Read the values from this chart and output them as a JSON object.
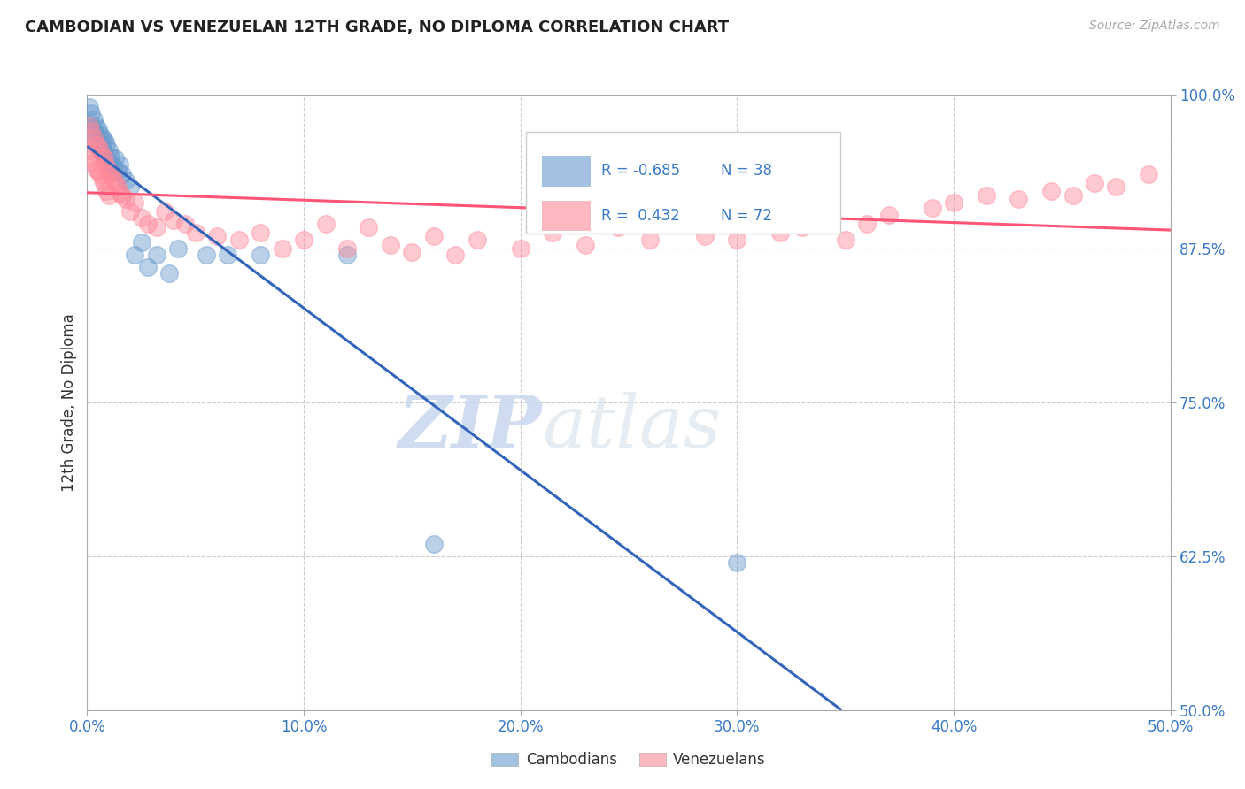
{
  "title": "CAMBODIAN VS VENEZUELAN 12TH GRADE, NO DIPLOMA CORRELATION CHART",
  "source": "Source: ZipAtlas.com",
  "ylabel": "12th Grade, No Diploma",
  "legend_label_cambodian": "Cambodians",
  "legend_label_venezuelan": "Venezuelans",
  "r_cambodian": -0.685,
  "n_cambodian": 38,
  "r_venezuelan": 0.432,
  "n_venezuelan": 72,
  "xlim": [
    0.0,
    0.5
  ],
  "ylim": [
    0.5,
    1.0
  ],
  "xticks": [
    0.0,
    0.1,
    0.2,
    0.3,
    0.4,
    0.5
  ],
  "yticks": [
    0.5,
    0.625,
    0.75,
    0.875,
    1.0
  ],
  "xticklabels": [
    "0.0%",
    "10.0%",
    "20.0%",
    "30.0%",
    "40.0%",
    "50.0%"
  ],
  "yticklabels": [
    "50.0%",
    "62.5%",
    "75.0%",
    "87.5%",
    "100.0%"
  ],
  "color_cambodian": "#6699CC",
  "color_venezuelan": "#FF8899",
  "trendline_color_cambodian": "#3366BB",
  "trendline_color_venezuelan": "#FF5577",
  "background_color": "#FFFFFF",
  "watermark_zip": "ZIP",
  "watermark_atlas": "atlas",
  "cam_x": [
    0.001,
    0.002,
    0.002,
    0.003,
    0.003,
    0.004,
    0.004,
    0.005,
    0.005,
    0.006,
    0.006,
    0.007,
    0.007,
    0.008,
    0.008,
    0.009,
    0.01,
    0.01,
    0.011,
    0.012,
    0.013,
    0.014,
    0.015,
    0.016,
    0.018,
    0.02,
    0.022,
    0.025,
    0.028,
    0.032,
    0.038,
    0.042,
    0.055,
    0.065,
    0.08,
    0.12,
    0.16,
    0.3
  ],
  "cam_y": [
    0.99,
    0.985,
    0.975,
    0.98,
    0.97,
    0.975,
    0.965,
    0.972,
    0.96,
    0.968,
    0.955,
    0.965,
    0.958,
    0.963,
    0.952,
    0.96,
    0.955,
    0.945,
    0.95,
    0.942,
    0.948,
    0.938,
    0.943,
    0.935,
    0.93,
    0.925,
    0.87,
    0.88,
    0.86,
    0.87,
    0.855,
    0.875,
    0.87,
    0.87,
    0.87,
    0.87,
    0.635,
    0.62
  ],
  "ven_x": [
    0.001,
    0.001,
    0.002,
    0.002,
    0.003,
    0.003,
    0.004,
    0.004,
    0.005,
    0.005,
    0.006,
    0.006,
    0.007,
    0.007,
    0.008,
    0.008,
    0.009,
    0.009,
    0.01,
    0.01,
    0.011,
    0.012,
    0.013,
    0.014,
    0.015,
    0.016,
    0.018,
    0.02,
    0.022,
    0.025,
    0.028,
    0.032,
    0.036,
    0.04,
    0.045,
    0.05,
    0.06,
    0.07,
    0.08,
    0.09,
    0.1,
    0.11,
    0.12,
    0.13,
    0.14,
    0.15,
    0.16,
    0.17,
    0.18,
    0.2,
    0.215,
    0.23,
    0.245,
    0.26,
    0.27,
    0.285,
    0.3,
    0.31,
    0.32,
    0.33,
    0.35,
    0.36,
    0.37,
    0.39,
    0.4,
    0.415,
    0.43,
    0.445,
    0.455,
    0.465,
    0.475,
    0.49
  ],
  "ven_y": [
    0.975,
    0.955,
    0.97,
    0.95,
    0.965,
    0.945,
    0.96,
    0.94,
    0.958,
    0.938,
    0.955,
    0.935,
    0.95,
    0.93,
    0.948,
    0.928,
    0.942,
    0.922,
    0.938,
    0.918,
    0.935,
    0.932,
    0.928,
    0.925,
    0.92,
    0.918,
    0.915,
    0.905,
    0.912,
    0.9,
    0.895,
    0.892,
    0.905,
    0.898,
    0.895,
    0.888,
    0.885,
    0.882,
    0.888,
    0.875,
    0.882,
    0.895,
    0.875,
    0.892,
    0.878,
    0.872,
    0.885,
    0.87,
    0.882,
    0.875,
    0.888,
    0.878,
    0.892,
    0.882,
    0.895,
    0.885,
    0.882,
    0.895,
    0.888,
    0.892,
    0.882,
    0.895,
    0.902,
    0.908,
    0.912,
    0.918,
    0.915,
    0.922,
    0.918,
    0.928,
    0.925,
    0.935
  ]
}
